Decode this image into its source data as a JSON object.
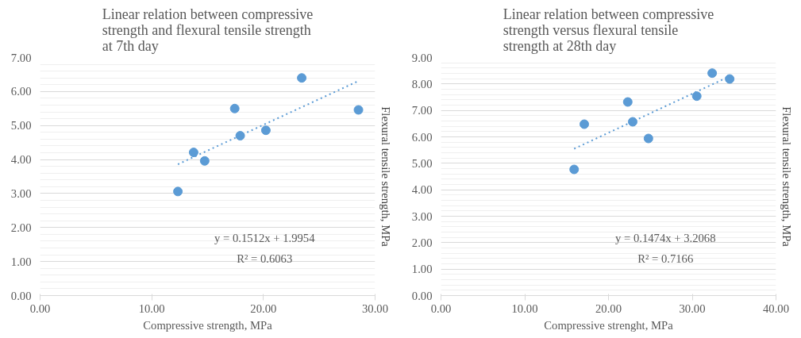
{
  "chart_data": [
    {
      "type": "scatter",
      "title": "Linear relation between compressive strength and flexural tensile strength at 7th day",
      "xlabel": "Compressive strength, MPa",
      "ylabel": "Flexural tensile strength, MPa",
      "xlim": [
        0,
        30
      ],
      "xticks": [
        {
          "value": 0,
          "label": "0.00"
        },
        {
          "value": 10,
          "label": "10.00"
        },
        {
          "value": 20,
          "label": "20.00"
        },
        {
          "value": 30,
          "label": "30.00"
        }
      ],
      "ylim": [
        0,
        7
      ],
      "yticks": [
        {
          "value": 0,
          "label": "0.00"
        },
        {
          "value": 1,
          "label": "1.00"
        },
        {
          "value": 2,
          "label": "2.00"
        },
        {
          "value": 3,
          "label": "3.00"
        },
        {
          "value": 4,
          "label": "4.00"
        },
        {
          "value": 5,
          "label": "5.00"
        },
        {
          "value": 6,
          "label": "6.00"
        },
        {
          "value": 7,
          "label": "7.00"
        }
      ],
      "grid": "y",
      "marker": "circle",
      "series": [
        {
          "type": "scatter",
          "color": "#5b9bd5",
          "x": [
            12.34,
            13.75,
            14.74,
            17.43,
            17.92,
            20.22,
            23.43,
            28.51
          ],
          "values": [
            3.06,
            4.21,
            3.96,
            5.5,
            4.7,
            4.86,
            6.4,
            5.46
          ]
        },
        {
          "type": "line",
          "color": "#5b9bd5",
          "line_style": "dotted",
          "marker": "none",
          "x": [
            12.34,
            28.51
          ],
          "values": [
            3.86,
            6.31
          ]
        }
      ],
      "annotations": [
        "y = 0.1512x + 1.9954",
        "R² = 0.6063"
      ]
    },
    {
      "type": "scatter",
      "title": "Linear relation between compressive strength versus flexural tensile strength at 28th day",
      "xlabel": "Compressive strenght, MPa",
      "ylabel": "Flexural tensile strength, MPa",
      "xlim": [
        0,
        40
      ],
      "xticks": [
        {
          "value": 0,
          "label": "0.00"
        },
        {
          "value": 10,
          "label": "10.00"
        },
        {
          "value": 20,
          "label": "20.00"
        },
        {
          "value": 30,
          "label": "30.00"
        },
        {
          "value": 40,
          "label": "40.00"
        }
      ],
      "ylim": [
        0,
        9
      ],
      "yticks": [
        {
          "value": 0,
          "label": "0.00"
        },
        {
          "value": 1,
          "label": "1.00"
        },
        {
          "value": 2,
          "label": "2.00"
        },
        {
          "value": 3,
          "label": "3.00"
        },
        {
          "value": 4,
          "label": "4.00"
        },
        {
          "value": 5,
          "label": "5.00"
        },
        {
          "value": 6,
          "label": "6.00"
        },
        {
          "value": 7,
          "label": "7.00"
        },
        {
          "value": 8,
          "label": "8.00"
        },
        {
          "value": 9,
          "label": "9.00"
        }
      ],
      "grid": "y",
      "marker": "circle",
      "series": [
        {
          "type": "scatter",
          "color": "#5b9bd5",
          "x": [
            15.9,
            17.11,
            22.3,
            22.89,
            24.77,
            30.54,
            32.38,
            34.47
          ],
          "values": [
            4.77,
            6.48,
            7.32,
            6.57,
            5.94,
            7.54,
            8.41,
            8.19
          ]
        },
        {
          "type": "line",
          "color": "#5b9bd5",
          "line_style": "dotted",
          "marker": "none",
          "x": [
            15.9,
            34.47
          ],
          "values": [
            5.55,
            8.29
          ]
        }
      ],
      "annotations": [
        "y = 0.1474x + 3.2068",
        "R² = 0.7166"
      ]
    }
  ]
}
